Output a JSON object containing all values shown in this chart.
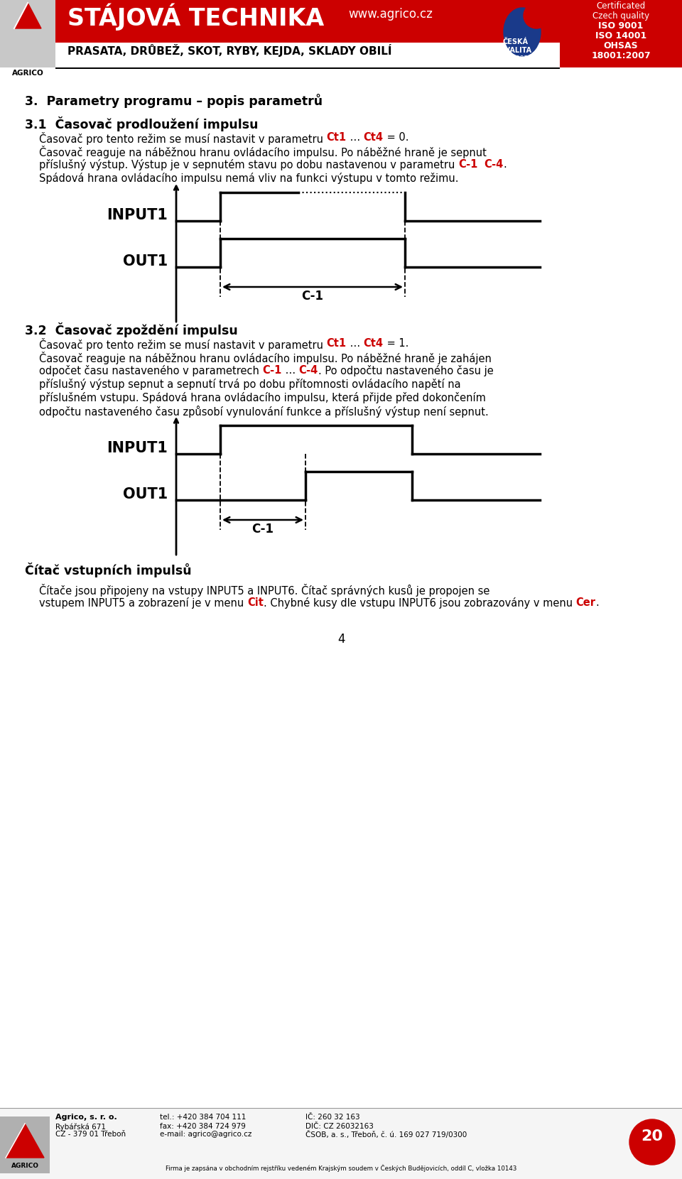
{
  "bg_color": "#ffffff",
  "header_red_color": "#cc0000",
  "cert_bg_color": "#cc0000",
  "red_highlight": "#cc0000",
  "page_number": "4",
  "header_title": "STÁJOVÁ TECHNIKA",
  "header_subtitle": "PRASATA, DRŮBEŽ, SKOT, RYBY, KEJDA, SKLADY OBILÍ",
  "header_url": "www.agrico.cz",
  "cert_lines": [
    "Certificated",
    "Czech quality",
    "ISO 9001",
    "ISO 14001",
    "OHSAS",
    "18001:2007"
  ],
  "section_title": "3.  Parametry programu – popis parametrů",
  "s31_title": "3.1  Časovač prodloužení impulsu",
  "s32_title": "3.2  Časovač zpoždění impulsu",
  "s_counter_title": "Čítač vstupních impulsů",
  "footer_company": "Agrico, s. r. o.",
  "footer_street": "Rybářská 671",
  "footer_city": "CZ - 379 01 Třeboň",
  "footer_tel": "tel.: +420 384 704 111",
  "footer_fax": "fax: +420 384 724 979",
  "footer_email": "e-mail: agrico@agrico.cz",
  "footer_ico": "IČ: 260 32 163",
  "footer_dic": "DIČ: CZ 26032163",
  "footer_csob": "ČSOB, a. s., Třeboň, č. ú. 169 027 719/0300",
  "footer_legal": "Firma je zapsána v obchodním rejstříku vedeném Krajským soudem v Českých Budějovicích, oddíl C, vložka 10143"
}
